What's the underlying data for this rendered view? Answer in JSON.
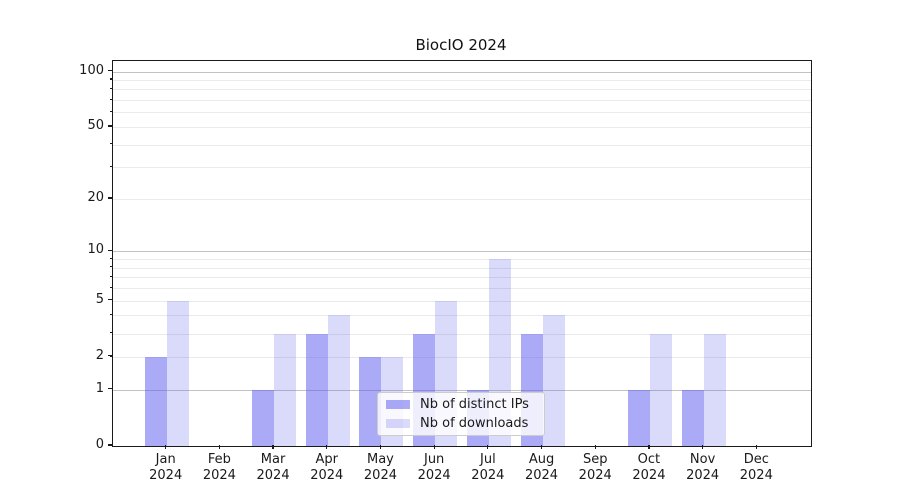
{
  "title": "BiocIO 2024",
  "colors": {
    "bar_base": "#5555ee",
    "series1_alpha": 0.5,
    "series2_alpha": 0.22,
    "major_grid": "#c3c3c3",
    "minor_grid": "#eaeaea",
    "spine": "#1a1a1a",
    "text": "#1a1a1a",
    "legend_bg": "rgba(255,255,255,0.8)",
    "legend_border": "#cccccc"
  },
  "chart_data": {
    "type": "bar",
    "title": "BiocIO 2024",
    "categories": [
      "Jan",
      "Feb",
      "Mar",
      "Apr",
      "May",
      "Jun",
      "Jul",
      "Aug",
      "Sep",
      "Oct",
      "Nov",
      "Dec"
    ],
    "category_year": "2024",
    "series": [
      {
        "name": "Nb of distinct IPs",
        "values": [
          2,
          0,
          1,
          3,
          2,
          3,
          1,
          3,
          0,
          1,
          1,
          0
        ]
      },
      {
        "name": "Nb of downloads",
        "values": [
          5,
          0,
          3,
          4,
          2,
          5,
          9,
          4,
          0,
          3,
          3,
          0
        ]
      }
    ],
    "xlabel": "",
    "ylabel": "",
    "yscale": "log1p",
    "ylim": [
      0,
      114
    ],
    "yticks": [
      0,
      1,
      2,
      5,
      10,
      20,
      50,
      100
    ],
    "major_gridlines": [
      1,
      10,
      100
    ],
    "minor_gridlines": [
      2,
      3,
      4,
      5,
      6,
      7,
      8,
      9,
      20,
      30,
      40,
      50,
      60,
      70,
      80,
      90
    ],
    "grid": true,
    "legend_position": "lower center"
  }
}
